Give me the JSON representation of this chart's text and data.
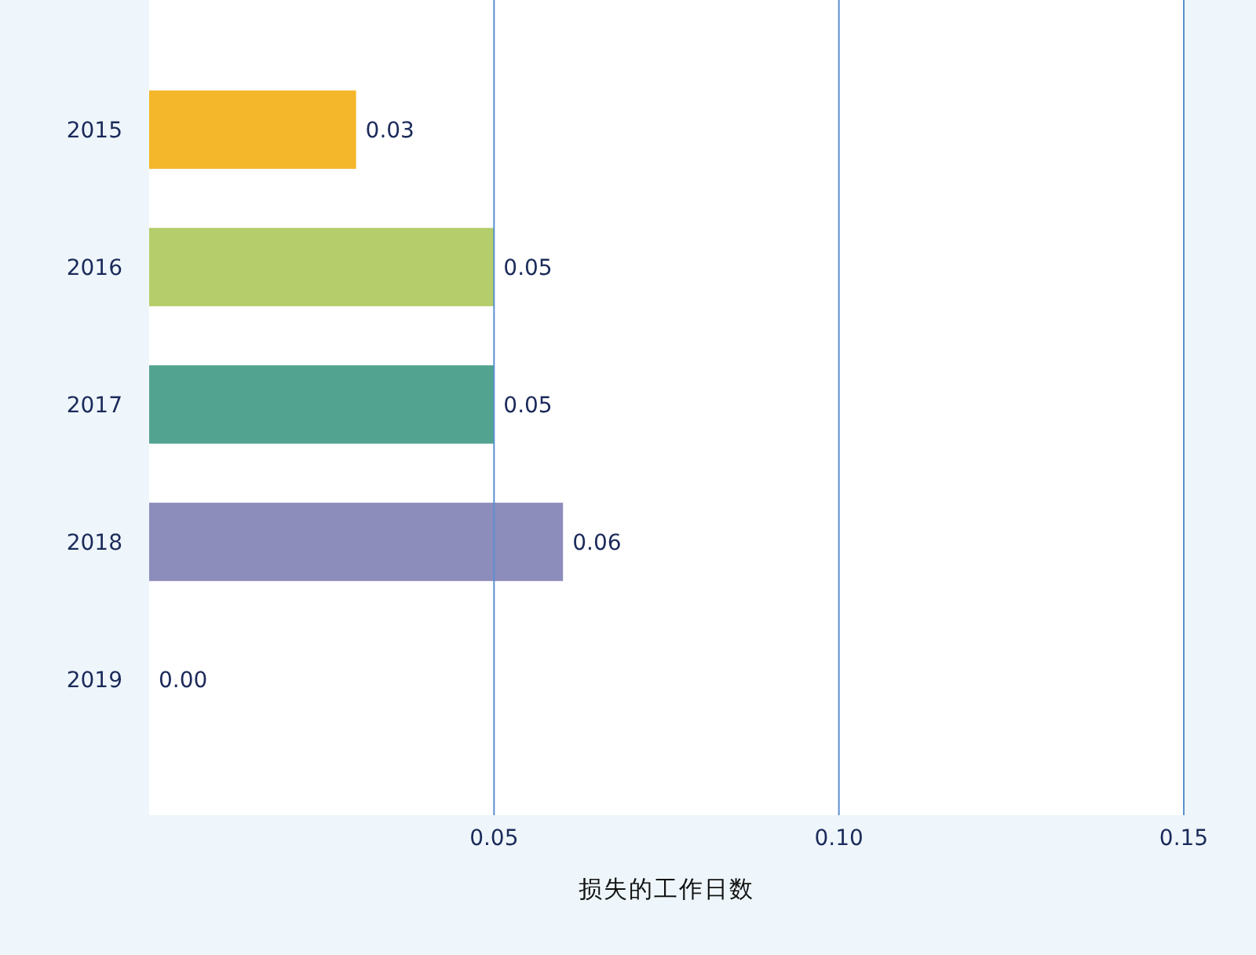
{
  "chart_data": {
    "type": "bar",
    "orientation": "horizontal",
    "xlabel": "损失的工作日数",
    "categories": [
      "2015",
      "2016",
      "2017",
      "2018",
      "2019"
    ],
    "values": [
      0.03,
      0.05,
      0.05,
      0.06,
      0
    ],
    "value_labels": [
      "0.03",
      "0.05",
      "0.05",
      "0.06",
      "0.00"
    ],
    "colors": [
      "#f4b62a",
      "#b5cd6a",
      "#52a390",
      "#8d8dbc",
      "#8d8dbc"
    ],
    "xlim": [
      0,
      0.15
    ],
    "xticks": [
      0.05,
      {
        "value": 0.1,
        "label": "0.10"
      },
      0.15
    ],
    "grid": "x"
  }
}
